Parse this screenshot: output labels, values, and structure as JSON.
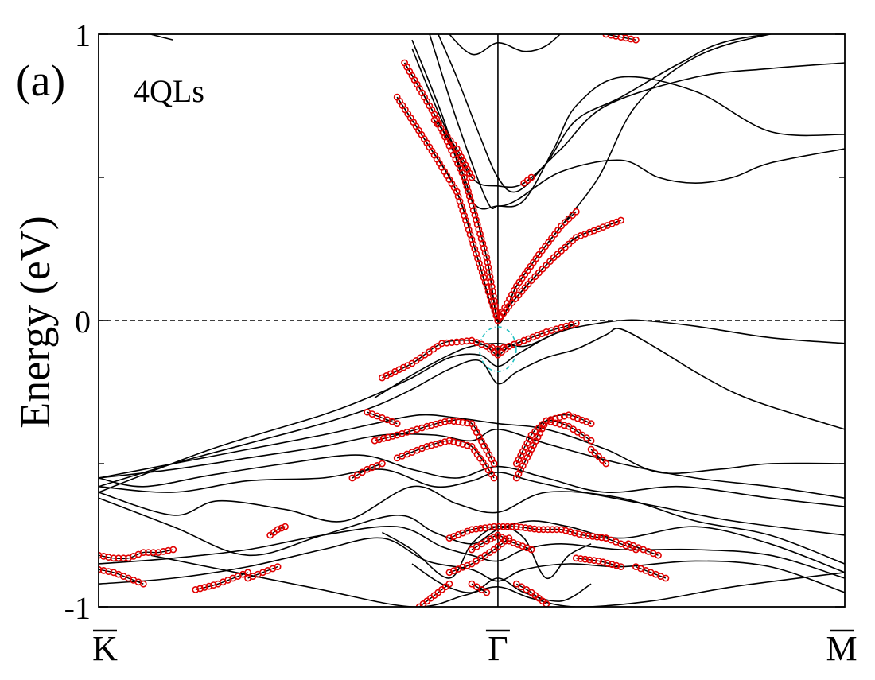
{
  "chart_data": {
    "type": "line",
    "panel_label": "(a)",
    "annotation": "4QLs",
    "ylabel": "Energy (eV)",
    "xlabel": "",
    "ylim": [
      -1,
      1
    ],
    "y_ticks": [
      {
        "value": 1,
        "label": "1"
      },
      {
        "value": 0,
        "label": "0"
      },
      {
        "value": -1,
        "label": "-1"
      }
    ],
    "y_minor_ticks": [
      0.5,
      -0.5
    ],
    "k_path": [
      {
        "k": 0,
        "label": "K",
        "overbar": true
      },
      {
        "k": 0.5351,
        "label": "Γ",
        "overbar": true
      },
      {
        "k": 1,
        "label": "M",
        "overbar": true
      }
    ],
    "fermi_level": 0,
    "highlight": {
      "k": 0.5351,
      "energy": -0.1,
      "color": "#20c0c0"
    },
    "colors": {
      "bands": "#000000",
      "projection": "#e00000"
    },
    "bands": [
      {
        "k": [
          0.07,
          0.28,
          0.42,
          0.49,
          0.535,
          0.58,
          0.64,
          0.74,
          0.85,
          1.0
        ],
        "e": [
          -0.82,
          -0.93,
          -1.0,
          -0.96,
          -0.93,
          -0.97,
          -1.0,
          -0.98,
          -0.93,
          -0.88
        ]
      },
      {
        "k": [
          0.0,
          0.1,
          0.2,
          0.3,
          0.38,
          0.44,
          0.5,
          0.535,
          0.57,
          0.63,
          0.7,
          0.8,
          0.9,
          1.0
        ],
        "e": [
          -0.92,
          -0.9,
          -0.86,
          -0.8,
          -0.76,
          -0.84,
          -0.87,
          -0.91,
          -0.87,
          -0.85,
          -0.86,
          -0.84,
          -0.86,
          -0.95
        ]
      },
      {
        "k": [
          0.0,
          0.1,
          0.2,
          0.3,
          0.4,
          0.46,
          0.5,
          0.535,
          0.57,
          0.62,
          0.7,
          0.8,
          0.9,
          1.0
        ],
        "e": [
          -0.85,
          -0.83,
          -0.8,
          -0.75,
          -0.72,
          -0.79,
          -0.82,
          -0.84,
          -0.8,
          -0.78,
          -0.8,
          -0.8,
          -0.82,
          -0.9
        ]
      },
      {
        "k": [
          0.0,
          0.1,
          0.2,
          0.3,
          0.4,
          0.45,
          0.5,
          0.535,
          0.58,
          0.63,
          0.7,
          0.8,
          0.9,
          1.0
        ],
        "e": [
          -0.62,
          -0.72,
          -0.82,
          -0.75,
          -0.68,
          -0.74,
          -0.78,
          -0.73,
          -0.7,
          -0.72,
          -0.76,
          -0.72,
          -0.78,
          -0.88
        ]
      },
      {
        "k": [
          0.0,
          0.1,
          0.16,
          0.25,
          0.33,
          0.42,
          0.48,
          0.535,
          0.6,
          0.7,
          0.8,
          0.9,
          1.0
        ],
        "e": [
          -0.6,
          -0.68,
          -0.63,
          -0.66,
          -0.7,
          -0.58,
          -0.64,
          -0.67,
          -0.6,
          -0.62,
          -0.7,
          -0.75,
          -0.85
        ]
      },
      {
        "k": [
          0.0,
          0.1,
          0.2,
          0.3,
          0.38,
          0.45,
          0.5,
          0.535,
          0.58,
          0.65,
          0.75,
          0.85,
          1.0
        ],
        "e": [
          -0.58,
          -0.6,
          -0.56,
          -0.55,
          -0.52,
          -0.58,
          -0.56,
          -0.53,
          -0.56,
          -0.6,
          -0.65,
          -0.7,
          -0.75
        ]
      },
      {
        "k": [
          0.0,
          0.06,
          0.15,
          0.25,
          0.35,
          0.42,
          0.48,
          0.535,
          0.6,
          0.68,
          0.78,
          0.9,
          1.0
        ],
        "e": [
          -0.55,
          -0.58,
          -0.54,
          -0.5,
          -0.47,
          -0.52,
          -0.55,
          -0.51,
          -0.55,
          -0.6,
          -0.58,
          -0.62,
          -0.65
        ]
      },
      {
        "k": [
          0.0,
          0.1,
          0.2,
          0.3,
          0.38,
          0.45,
          0.5,
          0.535,
          0.6,
          0.7,
          0.8,
          0.9,
          1.0
        ],
        "e": [
          -0.55,
          -0.52,
          -0.48,
          -0.44,
          -0.4,
          -0.4,
          -0.42,
          -0.38,
          -0.43,
          -0.5,
          -0.55,
          -0.58,
          -0.62
        ]
      },
      {
        "k": [
          0.0,
          0.1,
          0.2,
          0.3,
          0.37,
          0.43,
          0.48,
          0.535,
          0.6,
          0.68,
          0.75,
          0.83,
          0.9,
          1.0
        ],
        "e": [
          -0.55,
          -0.5,
          -0.45,
          -0.4,
          -0.36,
          -0.33,
          -0.34,
          -0.36,
          -0.38,
          -0.45,
          -0.53,
          -0.52,
          -0.5,
          -0.5
        ]
      },
      {
        "k": [
          0.0,
          0.1,
          0.2,
          0.3,
          0.37,
          0.42,
          0.47,
          0.51,
          0.535,
          0.56,
          0.6,
          0.64,
          0.68,
          0.7,
          0.75,
          0.8,
          0.85,
          0.9,
          1.0
        ],
        "e": [
          -0.58,
          -0.5,
          -0.43,
          -0.36,
          -0.3,
          -0.24,
          -0.17,
          -0.14,
          -0.22,
          -0.18,
          -0.13,
          -0.1,
          -0.05,
          -0.03,
          -0.1,
          -0.18,
          -0.25,
          -0.3,
          -0.38
        ]
      },
      {
        "k": [
          0.0,
          0.15,
          0.3,
          0.37,
          0.42,
          0.47,
          0.51,
          0.535,
          0.56,
          0.6,
          0.63,
          0.67,
          0.7,
          0.73,
          0.8,
          0.9,
          1.0
        ],
        "e": [
          -0.6,
          -0.45,
          -0.33,
          -0.26,
          -0.2,
          -0.13,
          -0.12,
          -0.16,
          -0.12,
          -0.06,
          -0.03,
          -0.01,
          0.0,
          0.0,
          -0.02,
          -0.06,
          -0.08
        ]
      },
      {
        "k": [
          0.37,
          0.42,
          0.47,
          0.5,
          0.535,
          0.57,
          0.6,
          0.64
        ],
        "e": [
          -0.27,
          -0.19,
          -0.12,
          -0.09,
          -0.08,
          -0.09,
          -0.06,
          -0.01
        ]
      },
      {
        "k": [
          0.4,
          0.44,
          0.48,
          0.51,
          0.535,
          0.56,
          0.59,
          0.62,
          0.67,
          0.72,
          0.8,
          0.9,
          1.0
        ],
        "e": [
          0.78,
          0.62,
          0.45,
          0.2,
          0.0,
          0.12,
          0.23,
          0.33,
          0.5,
          0.75,
          0.92,
          1.0,
          1.03
        ]
      },
      {
        "k": [
          0.41,
          0.45,
          0.49,
          0.52,
          0.535,
          0.55,
          0.58,
          0.61,
          0.64,
          0.67,
          0.7
        ],
        "e": [
          0.9,
          0.72,
          0.5,
          0.22,
          0.0,
          0.05,
          0.14,
          0.22,
          0.29,
          0.32,
          0.35
        ]
      },
      {
        "k": [
          0.42,
          0.46,
          0.5,
          0.535,
          0.57,
          0.62,
          0.68,
          0.8,
          0.9,
          1.0
        ],
        "e": [
          0.95,
          0.7,
          0.5,
          0.47,
          0.48,
          0.6,
          0.75,
          0.85,
          0.88,
          0.9
        ]
      },
      {
        "k": [
          0.42,
          0.46,
          0.5,
          0.535,
          0.57,
          0.61,
          0.64,
          0.7,
          0.8,
          0.9,
          1.0
        ],
        "e": [
          0.98,
          0.72,
          0.42,
          0.4,
          0.42,
          0.6,
          0.75,
          0.85,
          0.8,
          0.66,
          0.65
        ]
      },
      {
        "k": [
          0.44,
          0.48,
          0.52,
          0.535,
          0.56,
          0.62,
          0.7,
          0.75,
          0.8,
          0.85,
          0.9,
          1.0
        ],
        "e": [
          1.03,
          0.7,
          0.42,
          0.4,
          0.42,
          0.52,
          0.56,
          0.5,
          0.48,
          0.5,
          0.55,
          0.6
        ]
      },
      {
        "k": [
          0.45,
          0.48,
          0.51,
          0.535,
          0.56,
          0.6,
          0.64,
          0.7,
          0.78,
          0.85,
          1.0
        ],
        "e": [
          1.03,
          0.85,
          0.65,
          0.5,
          0.45,
          0.55,
          0.7,
          0.78,
          0.9,
          0.98,
          1.03
        ]
      },
      {
        "k": [
          0.46,
          0.5,
          0.535,
          0.57,
          0.6,
          0.63
        ],
        "e": [
          1.03,
          0.93,
          0.97,
          0.94,
          0.96,
          1.03
        ]
      },
      {
        "k": [
          0.05,
          0.07,
          0.1
        ],
        "e": [
          1.02,
          1.0,
          0.98
        ]
      },
      {
        "k": [
          0.38,
          0.42,
          0.47,
          0.5,
          0.535,
          0.57,
          0.6,
          0.63,
          0.66
        ],
        "e": [
          -0.74,
          -0.8,
          -0.9,
          -0.78,
          -0.72,
          -0.76,
          -0.9,
          -0.82,
          -0.78
        ]
      },
      {
        "k": [
          0.42,
          0.46,
          0.5,
          0.535,
          0.57,
          0.62,
          0.66
        ],
        "e": [
          -0.85,
          -0.92,
          -0.95,
          -0.9,
          -0.95,
          -0.98,
          -0.92
        ]
      }
    ],
    "projected_bands": [
      {
        "k": [
          0.0,
          0.02,
          0.04,
          0.06,
          0.08,
          0.1
        ],
        "e": [
          -0.82,
          -0.83,
          -0.83,
          -0.81,
          -0.81,
          -0.8
        ]
      },
      {
        "k": [
          0.0,
          0.02,
          0.04,
          0.06
        ],
        "e": [
          -0.87,
          -0.88,
          -0.9,
          -0.92
        ]
      },
      {
        "k": [
          0.13,
          0.16,
          0.2
        ],
        "e": [
          -0.94,
          -0.92,
          -0.88
        ]
      },
      {
        "k": [
          0.2,
          0.22,
          0.24
        ],
        "e": [
          -0.9,
          -0.88,
          -0.86
        ]
      },
      {
        "k": [
          0.23,
          0.24,
          0.25
        ],
        "e": [
          -0.75,
          -0.73,
          -0.72
        ]
      },
      {
        "k": [
          0.36,
          0.38,
          0.4
        ],
        "e": [
          -0.32,
          -0.34,
          -0.36
        ]
      },
      {
        "k": [
          0.38,
          0.42,
          0.46,
          0.5,
          0.52,
          0.535,
          0.55,
          0.57,
          0.6,
          0.64
        ],
        "e": [
          -0.2,
          -0.15,
          -0.08,
          -0.07,
          -0.09,
          -0.1,
          -0.09,
          -0.07,
          -0.04,
          -0.01
        ]
      },
      {
        "k": [
          0.5,
          0.52,
          0.535,
          0.55,
          0.57
        ],
        "e": [
          -0.07,
          -0.09,
          -0.12,
          -0.09,
          -0.07
        ]
      },
      {
        "k": [
          0.4,
          0.44,
          0.48,
          0.51,
          0.535,
          0.56,
          0.59,
          0.62,
          0.64
        ],
        "e": [
          0.78,
          0.62,
          0.45,
          0.2,
          0.0,
          0.12,
          0.23,
          0.33,
          0.38
        ]
      },
      {
        "k": [
          0.41,
          0.45,
          0.49,
          0.52,
          0.535,
          0.55,
          0.58,
          0.61,
          0.64,
          0.67,
          0.7
        ],
        "e": [
          0.9,
          0.72,
          0.5,
          0.22,
          0.0,
          0.05,
          0.14,
          0.22,
          0.29,
          0.32,
          0.35
        ]
      },
      {
        "k": [
          0.45,
          0.48,
          0.5
        ],
        "e": [
          0.7,
          0.6,
          0.5
        ]
      },
      {
        "k": [
          0.57,
          0.58
        ],
        "e": [
          0.48,
          0.5
        ]
      },
      {
        "k": [
          0.68,
          0.7,
          0.72
        ],
        "e": [
          1.0,
          0.99,
          0.98
        ]
      },
      {
        "k": [
          0.37,
          0.4,
          0.44,
          0.47,
          0.5,
          0.53
        ],
        "e": [
          -0.42,
          -0.4,
          -0.37,
          -0.35,
          -0.36,
          -0.5
        ]
      },
      {
        "k": [
          0.4,
          0.44,
          0.47,
          0.5,
          0.53
        ],
        "e": [
          -0.48,
          -0.44,
          -0.42,
          -0.44,
          -0.55
        ]
      },
      {
        "k": [
          0.56,
          0.58,
          0.6,
          0.63,
          0.66
        ],
        "e": [
          -0.55,
          -0.45,
          -0.35,
          -0.33,
          -0.36
        ]
      },
      {
        "k": [
          0.56,
          0.58,
          0.6,
          0.63,
          0.66
        ],
        "e": [
          -0.5,
          -0.4,
          -0.35,
          -0.37,
          -0.42
        ]
      },
      {
        "k": [
          0.34,
          0.36,
          0.38
        ],
        "e": [
          -0.55,
          -0.52,
          -0.5
        ]
      },
      {
        "k": [
          0.66,
          0.68
        ],
        "e": [
          -0.45,
          -0.5
        ]
      },
      {
        "k": [
          0.47,
          0.5,
          0.53,
          0.56,
          0.59,
          0.62,
          0.65,
          0.68
        ],
        "e": [
          -0.76,
          -0.73,
          -0.72,
          -0.72,
          -0.73,
          -0.73,
          -0.75,
          -0.76
        ]
      },
      {
        "k": [
          0.5,
          0.52,
          0.535,
          0.55,
          0.58
        ],
        "e": [
          -0.8,
          -0.77,
          -0.75,
          -0.77,
          -0.8
        ]
      },
      {
        "k": [
          0.47,
          0.5,
          0.53,
          0.55
        ],
        "e": [
          -0.88,
          -0.85,
          -0.8,
          -0.76
        ]
      },
      {
        "k": [
          0.64,
          0.67,
          0.7
        ],
        "e": [
          -0.83,
          -0.84,
          -0.86
        ]
      },
      {
        "k": [
          0.68,
          0.7,
          0.72
        ],
        "e": [
          -0.76,
          -0.78,
          -0.8
        ]
      },
      {
        "k": [
          0.71,
          0.73,
          0.75
        ],
        "e": [
          -0.78,
          -0.8,
          -0.82
        ]
      },
      {
        "k": [
          0.72,
          0.74,
          0.76
        ],
        "e": [
          -0.86,
          -0.88,
          -0.9
        ]
      },
      {
        "k": [
          0.43,
          0.45,
          0.47
        ],
        "e": [
          -1.0,
          -0.96,
          -0.92
        ]
      },
      {
        "k": [
          0.5,
          0.52
        ],
        "e": [
          -0.92,
          -0.95
        ]
      },
      {
        "k": [
          0.56,
          0.58,
          0.6
        ],
        "e": [
          -0.92,
          -0.95,
          -0.99
        ]
      }
    ]
  }
}
